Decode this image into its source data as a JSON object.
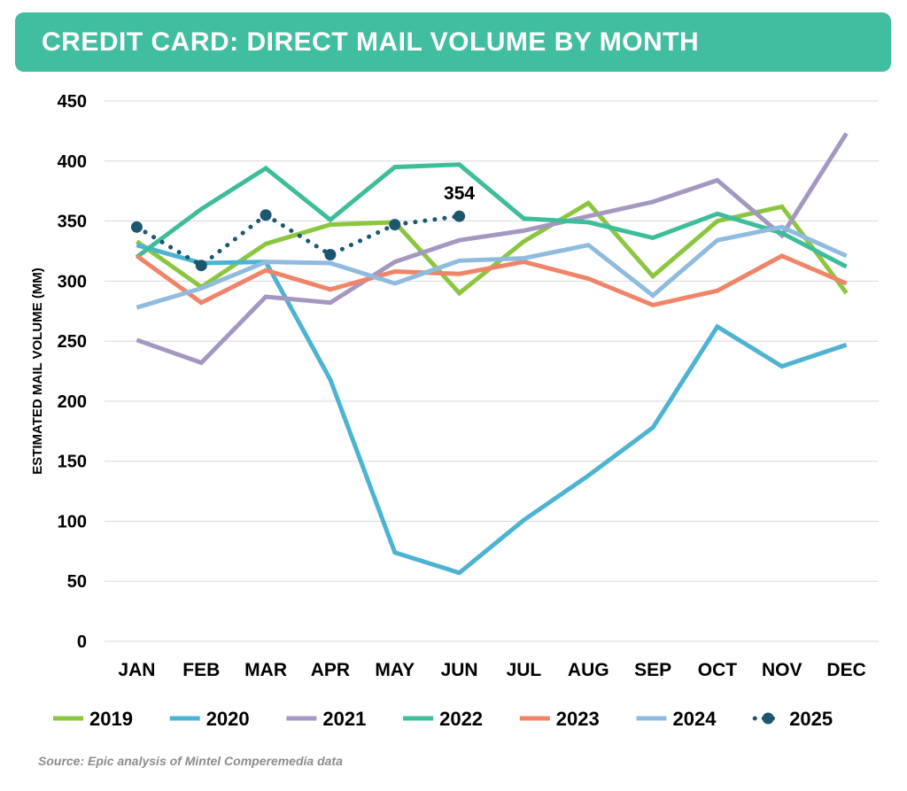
{
  "title": "CREDIT CARD: DIRECT MAIL VOLUME BY MONTH",
  "source": "Source: Epic analysis of Mintel Comperemedia data",
  "colors": {
    "title_bar": "#41bd9f"
  },
  "chart_data": {
    "type": "line",
    "ylabel": "ESTIMATED MAIL VOLUME (MM)",
    "xlabel": "",
    "ylim": [
      0,
      450
    ],
    "yticks": [
      0,
      50,
      100,
      150,
      200,
      250,
      300,
      350,
      400,
      450
    ],
    "grid": true,
    "legend_position": "bottom",
    "categories": [
      "JAN",
      "FEB",
      "MAR",
      "APR",
      "MAY",
      "JUN",
      "JUL",
      "AUG",
      "SEP",
      "OCT",
      "NOV",
      "DEC"
    ],
    "series": [
      {
        "name": "2019",
        "color": "#8cc63f",
        "style": "solid",
        "values": [
          333,
          295,
          331,
          347,
          349,
          290,
          333,
          365,
          304,
          350,
          362,
          290
        ]
      },
      {
        "name": "2020",
        "color": "#4db3d2",
        "style": "solid",
        "values": [
          330,
          315,
          316,
          218,
          74,
          57,
          101,
          138,
          178,
          262,
          229,
          247
        ]
      },
      {
        "name": "2021",
        "color": "#a497c0",
        "style": "solid",
        "values": [
          251,
          232,
          287,
          282,
          316,
          334,
          342,
          354,
          366,
          384,
          338,
          423
        ]
      },
      {
        "name": "2022",
        "color": "#3ebd9a",
        "style": "solid",
        "values": [
          320,
          360,
          394,
          351,
          395,
          397,
          352,
          349,
          336,
          356,
          340,
          312
        ]
      },
      {
        "name": "2023",
        "color": "#f08468",
        "style": "solid",
        "values": [
          321,
          282,
          309,
          293,
          308,
          306,
          316,
          302,
          280,
          292,
          321,
          298
        ]
      },
      {
        "name": "2024",
        "color": "#8fbbdf",
        "style": "solid",
        "values": [
          278,
          294,
          316,
          315,
          298,
          317,
          319,
          330,
          288,
          334,
          345,
          321
        ]
      },
      {
        "name": "2025",
        "color": "#1c566f",
        "style": "dotted",
        "values": [
          345,
          313,
          355,
          322,
          347,
          354,
          null,
          null,
          null,
          null,
          null,
          null
        ]
      }
    ],
    "annotations": [
      {
        "series": "2025",
        "category": "JUN",
        "text": "354"
      }
    ]
  }
}
